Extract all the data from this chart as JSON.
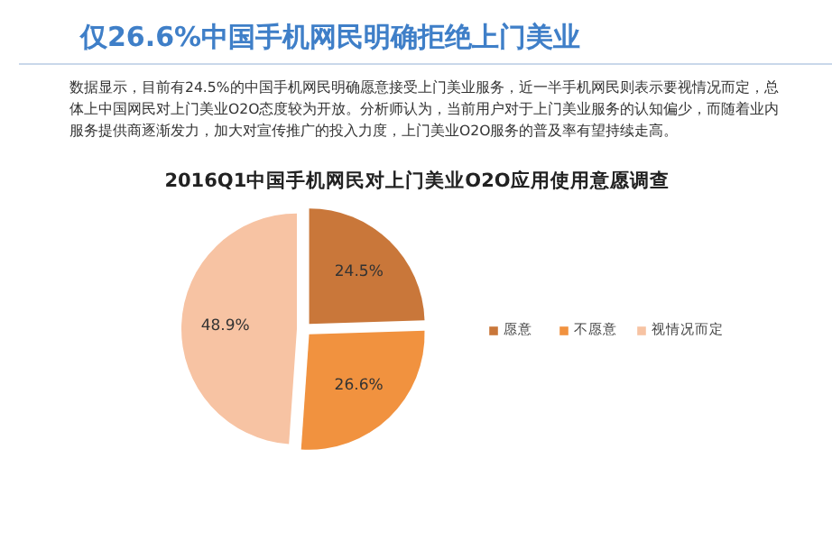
{
  "chart_data": {
    "type": "pie",
    "title": "仅26.6%中国手机网民明确拒绝上门美业",
    "subtitle": "数据显示，目前有24.5%的中国手机网民明确愿意接受上门美业服务，近一半手机网民则表示要视情况而定，总体上中国网民对上门美业O2O态度较为开放。分析师认为，当前用户对于上门美业服务的认知偏少，而随着业内服务提供商逐渐发力，加大对宣传推广的投入力度，上门美业O2O服务的普及率有望持续走高。",
    "annotations": [
      "2016Q1中国手机网民对上门美业O2O应用使用意愿调查"
    ],
    "categories": [
      "愿意",
      "不愿意",
      "视情况而定"
    ],
    "values": [
      24.5,
      26.6,
      48.9
    ],
    "colors": [
      "#c9773a",
      "#f1923f",
      "#f7c3a3"
    ],
    "value_labels": [
      "24.5%",
      "26.6%",
      "48.9%"
    ],
    "legend": "right"
  }
}
